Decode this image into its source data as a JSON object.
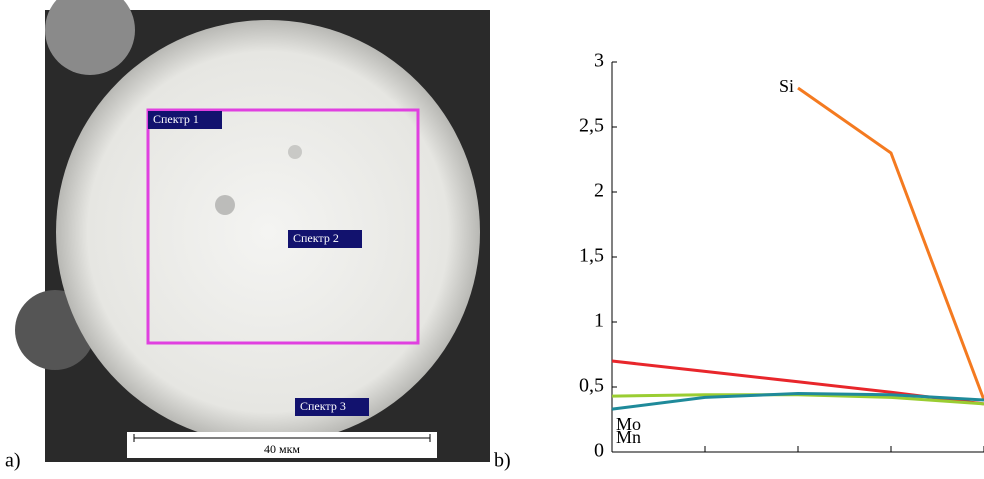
{
  "panel_a": {
    "label": "a)",
    "annotations": [
      "Спектр 1",
      "Спектр 2",
      "Спектр 3"
    ],
    "scale_bar": "40 мкм"
  },
  "chart_data": {
    "type": "line",
    "panel_label": "b)",
    "categories": [
      null,
      null,
      null,
      null,
      null
    ],
    "series": [
      {
        "name": "Si",
        "color": "#f47a20",
        "values": [
          null,
          null,
          2.8,
          2.3,
          0.4
        ]
      },
      {
        "color": "#e8262b",
        "values": [
          0.7,
          0.62,
          0.54,
          0.46,
          0.37
        ]
      },
      {
        "name": "Mo",
        "color": "#9acd32",
        "values": [
          0.43,
          0.44,
          0.44,
          0.42,
          0.37
        ]
      },
      {
        "name": "Mn",
        "color": "#1f8a9a",
        "values": [
          0.33,
          0.42,
          0.45,
          0.44,
          0.4
        ]
      }
    ],
    "ylim": [
      0,
      3
    ],
    "yticks": [
      0,
      {
        "value": 0.5,
        "label": "0,5"
      },
      1,
      {
        "value": 1.5,
        "label": "1,5"
      },
      2,
      {
        "value": 2.5,
        "label": "2,5"
      },
      3
    ]
  }
}
